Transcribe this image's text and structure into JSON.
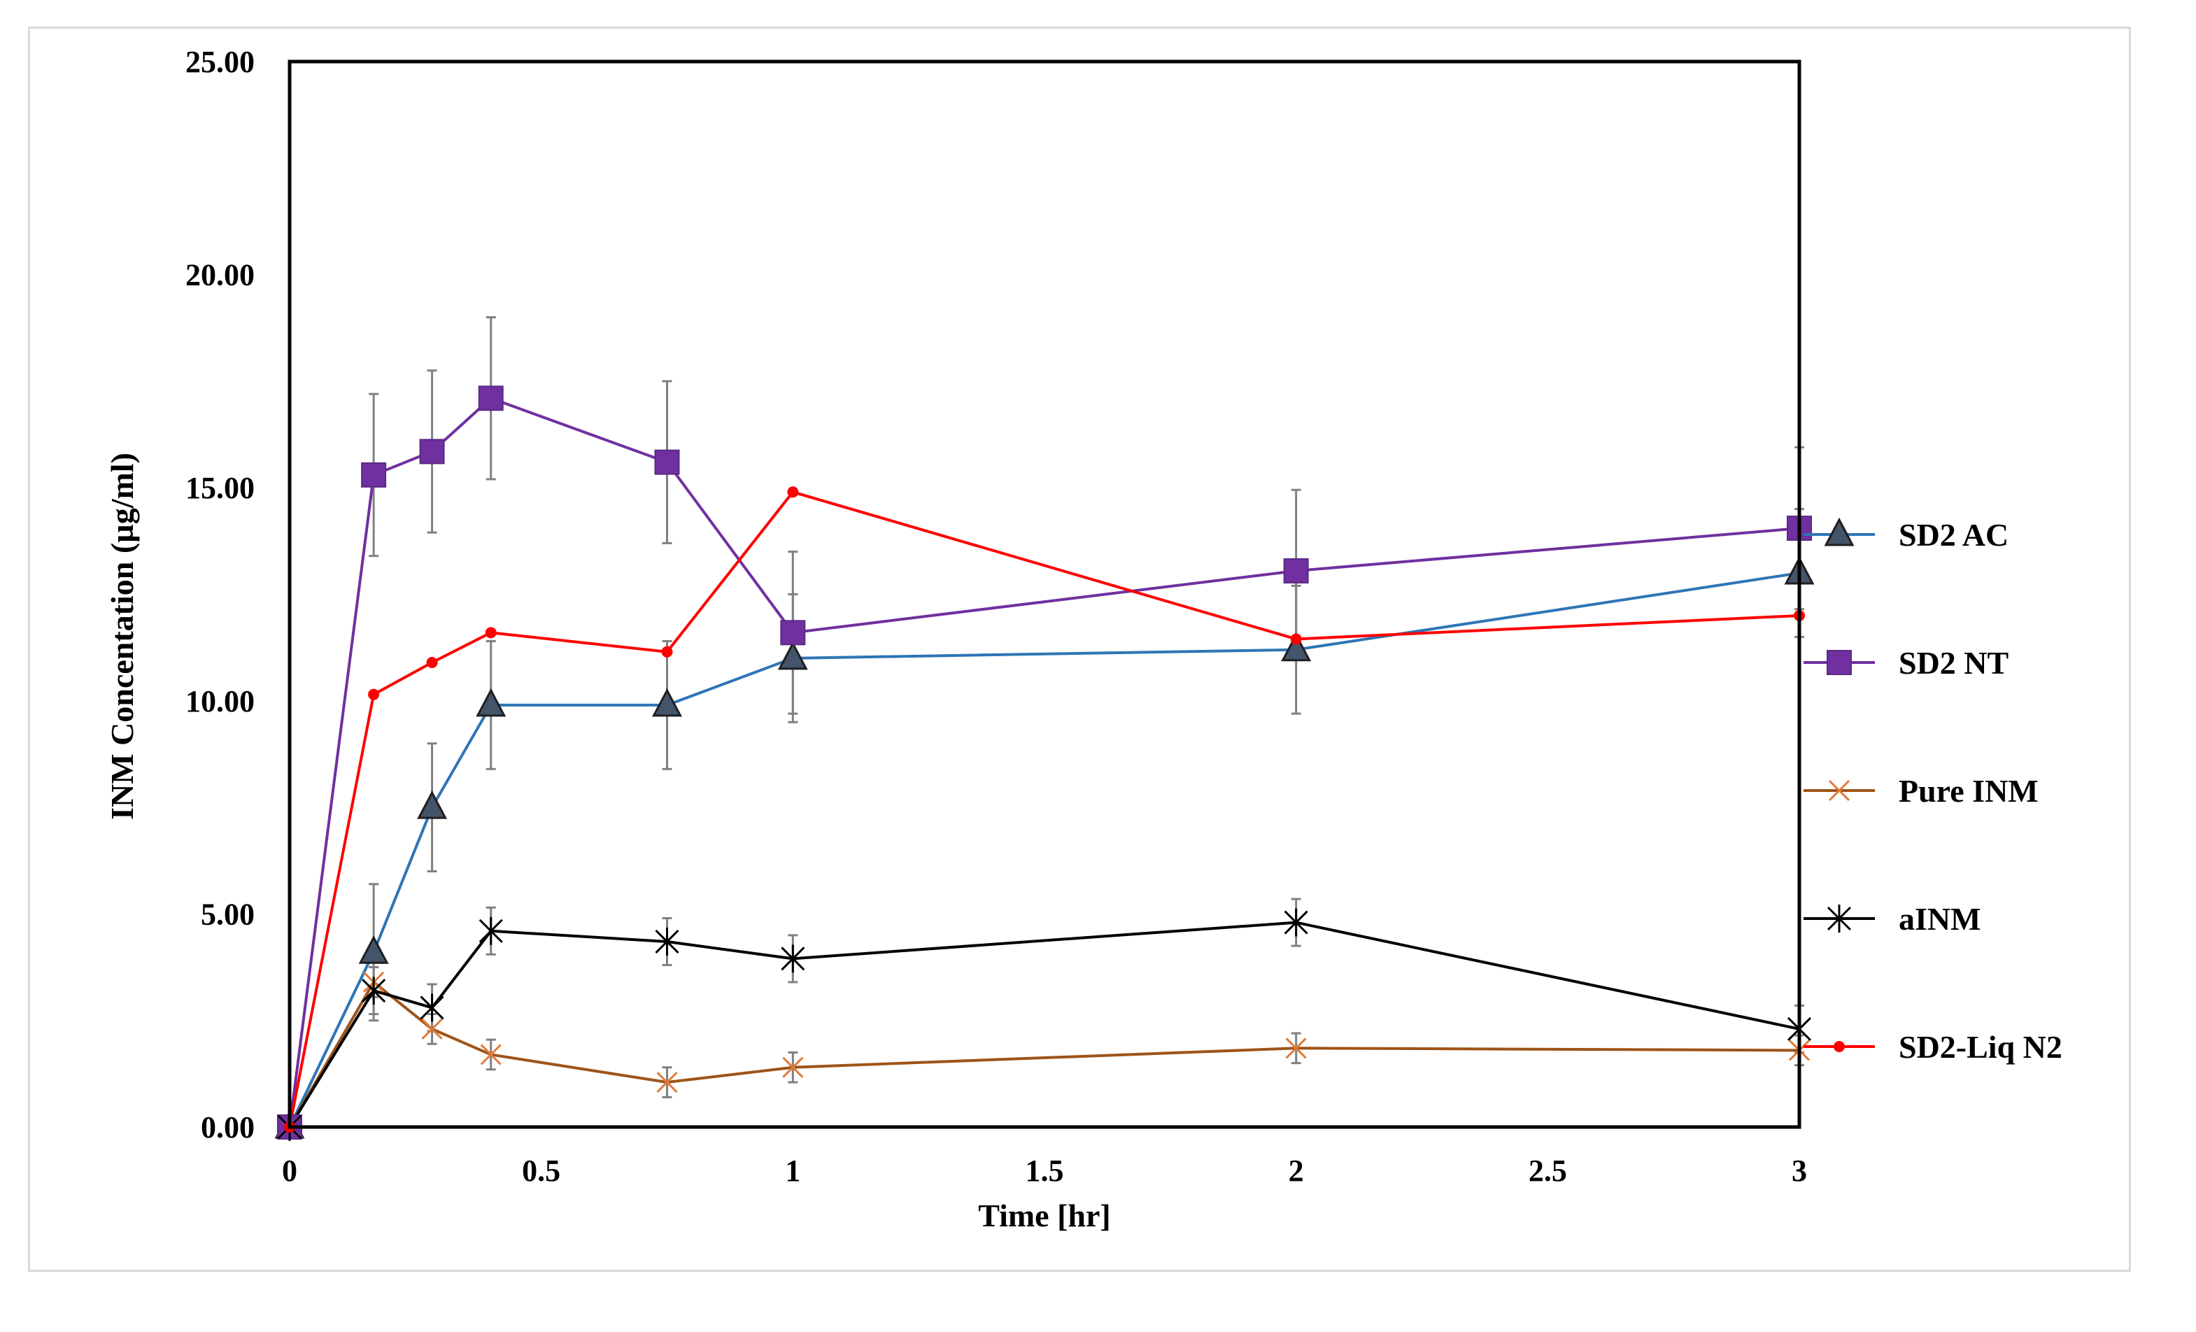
{
  "chart_data": {
    "type": "line",
    "title": "",
    "xlabel": "Time [hr]",
    "ylabel": "INM Concentation (µg/ml)",
    "x": [
      0,
      0.167,
      0.283,
      0.4,
      0.75,
      1,
      2,
      3
    ],
    "xlim": [
      0,
      3
    ],
    "ylim": [
      0,
      25
    ],
    "xticks": [
      0,
      0.5,
      1,
      1.5,
      2,
      2.5,
      3
    ],
    "xtick_labels": [
      "0",
      "0.5",
      "1",
      "1.5",
      "2",
      "2.5",
      "3"
    ],
    "yticks": [
      0,
      5,
      10,
      15,
      20,
      25
    ],
    "ytick_labels": [
      "0.00",
      "5.00",
      "10.00",
      "15.00",
      "20.00",
      "25.00"
    ],
    "legend_position": "right",
    "series": [
      {
        "name": "SD2 AC",
        "color": "#2e75b6",
        "marker": "triangle",
        "marker_fill": "#44546a",
        "values": [
          0,
          4.1,
          7.5,
          9.9,
          9.9,
          11.0,
          11.2,
          13.0
        ],
        "errors": [
          0,
          1.6,
          1.5,
          1.5,
          1.5,
          1.5,
          1.5,
          1.5
        ]
      },
      {
        "name": "SD2 NT",
        "color": "#7030a0",
        "marker": "square",
        "marker_fill": "#7030a0",
        "values": [
          0,
          15.3,
          15.85,
          17.1,
          15.6,
          11.6,
          13.05,
          14.05
        ],
        "errors": [
          0,
          1.9,
          1.9,
          1.9,
          1.9,
          1.9,
          1.9,
          1.9
        ]
      },
      {
        "name": "Pure INM",
        "color": "#9e5418",
        "marker": "x",
        "marker_fill": "#e07b39",
        "values": [
          0,
          3.4,
          2.3,
          1.7,
          1.05,
          1.4,
          1.85,
          1.8
        ],
        "errors": [
          0,
          0.35,
          0.35,
          0.35,
          0.35,
          0.35,
          0.35,
          0.35
        ]
      },
      {
        "name": "aINM",
        "color": "#000000",
        "marker": "star",
        "marker_fill": "#000000",
        "values": [
          0,
          3.2,
          2.8,
          4.6,
          4.35,
          3.95,
          4.8,
          2.3
        ],
        "errors": [
          0,
          0.55,
          0.55,
          0.55,
          0.55,
          0.55,
          0.55,
          0.55
        ]
      },
      {
        "name": "SD2-Liq N2",
        "color": "#ff0000",
        "marker": "circle",
        "marker_fill": "#ff0000",
        "values": [
          0,
          10.15,
          10.9,
          11.6,
          11.15,
          14.9,
          11.45,
          12.0
        ],
        "errors": [
          0,
          0,
          0,
          0,
          0,
          0,
          0,
          0
        ]
      }
    ]
  }
}
